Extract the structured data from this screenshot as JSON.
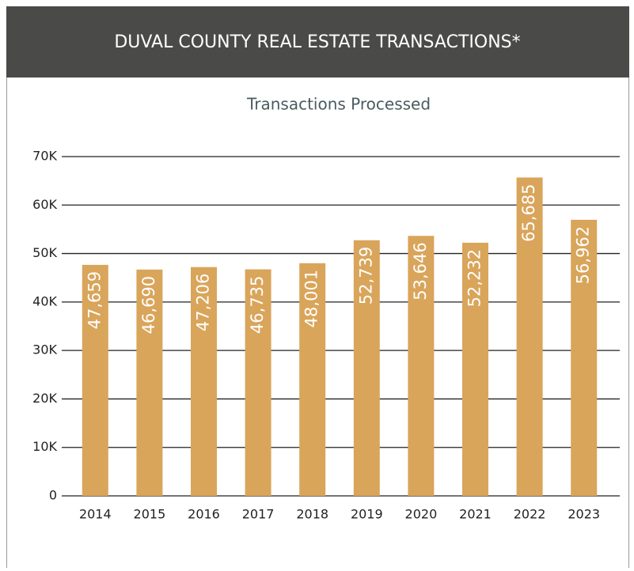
{
  "header": {
    "title": "DUVAL COUNTY REAL ESTATE TRANSACTIONS*"
  },
  "chart_data": {
    "type": "bar",
    "title": "Transactions Processed",
    "categories": [
      "2014",
      "2015",
      "2016",
      "2017",
      "2018",
      "2019",
      "2020",
      "2021",
      "2022",
      "2023"
    ],
    "values": [
      47659,
      46690,
      47206,
      46735,
      48001,
      52739,
      53646,
      52232,
      65685,
      56962
    ],
    "value_labels": [
      "47,659",
      "46,690",
      "47,206",
      "46,735",
      "48,001",
      "52,739",
      "53,646",
      "52,232",
      "65,685",
      "56,962"
    ],
    "color": "#d9a55b",
    "ylim": [
      0,
      70000
    ],
    "yticks": [
      0,
      {
        "value": 10000,
        "label": "10K"
      },
      {
        "value": 20000,
        "label": "20K"
      },
      {
        "value": 30000,
        "label": "30K"
      },
      {
        "value": 40000,
        "label": "40K"
      },
      {
        "value": 50000,
        "label": "50K"
      },
      {
        "value": 60000,
        "label": "60K"
      },
      {
        "value": 70000,
        "label": "70K"
      }
    ],
    "grid": true
  }
}
